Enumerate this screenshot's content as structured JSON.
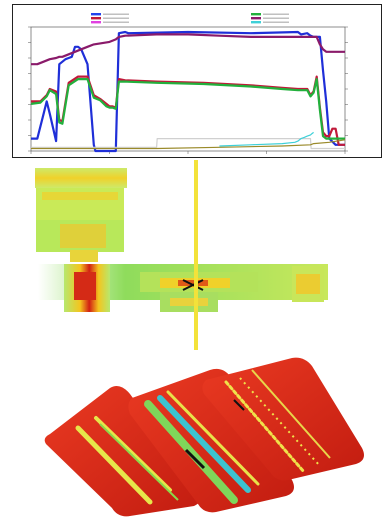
{
  "chart_data": {
    "type": "line",
    "title": "",
    "xlabel": "",
    "ylabel": "",
    "xlim": [
      0,
      100
    ],
    "ylim": [
      0,
      100
    ],
    "y2lim": [
      0,
      100
    ],
    "grid": false,
    "legend_placement": "top",
    "series": [
      {
        "color": "#1f2fd8",
        "axis": "left",
        "x": [
          0,
          2,
          4,
          5,
          6,
          8,
          9,
          10,
          11,
          12,
          13,
          14,
          15,
          16,
          18,
          20,
          20.5,
          22,
          24,
          25,
          26,
          26.5,
          27,
          28,
          30,
          31,
          50,
          70,
          85,
          86,
          88,
          89,
          90,
          92,
          93,
          94,
          95,
          97,
          98,
          100
        ],
        "y": [
          10,
          10,
          30,
          40,
          30,
          8,
          70,
          72,
          74,
          75,
          76,
          84,
          84,
          82,
          70,
          5,
          0,
          0,
          0,
          0,
          0,
          0,
          0,
          95,
          96,
          95,
          96,
          95,
          96,
          94,
          95,
          93,
          92,
          92,
          65,
          40,
          10,
          5,
          5,
          5
        ]
      },
      {
        "color": "#c01a3a",
        "axis": "left",
        "x": [
          0,
          3,
          5,
          6,
          8,
          9,
          10,
          12,
          15,
          18,
          20,
          22,
          24,
          25,
          26,
          27,
          28,
          30,
          40,
          55,
          70,
          80,
          85,
          88,
          89,
          90,
          91,
          92,
          93,
          94,
          95,
          96,
          97,
          98,
          100
        ],
        "y": [
          40,
          40,
          45,
          50,
          48,
          25,
          24,
          55,
          60,
          60,
          45,
          42,
          38,
          36,
          36,
          35,
          58,
          57,
          56,
          55,
          53,
          51,
          50,
          50,
          45,
          48,
          60,
          35,
          15,
          12,
          12,
          18,
          18,
          5,
          5
        ]
      },
      {
        "color": "#22b03c",
        "axis": "left",
        "x": [
          0,
          3,
          5,
          6,
          8,
          9,
          10,
          12,
          15,
          18,
          20,
          22,
          24,
          25,
          26,
          27,
          28,
          30,
          40,
          55,
          70,
          80,
          85,
          88,
          89,
          90,
          91,
          92,
          93,
          94,
          95,
          100
        ],
        "y": [
          38,
          39,
          44,
          49,
          46,
          23,
          22,
          53,
          58,
          58,
          43,
          41,
          36,
          35,
          35,
          34,
          56,
          56,
          55,
          54,
          52,
          50,
          49,
          49,
          44,
          47,
          58,
          33,
          12,
          10,
          10,
          10
        ]
      },
      {
        "color": "#8a1a6a",
        "axis": "right",
        "x": [
          0,
          2,
          4,
          6,
          8,
          9,
          10,
          12,
          14,
          16,
          18,
          20,
          25,
          27,
          28,
          30,
          40,
          50,
          60,
          70,
          80,
          85,
          88,
          90,
          91,
          92,
          93,
          94,
          95,
          96,
          100
        ],
        "y": [
          70,
          70,
          72,
          74,
          75,
          76,
          76,
          78,
          80,
          82,
          84,
          86,
          88,
          90,
          92,
          93,
          94,
          94,
          93,
          92,
          92,
          92,
          92,
          92,
          92,
          86,
          82,
          80,
          80,
          80,
          80
        ]
      },
      {
        "color": "#d0d0d0",
        "axis": "left",
        "x": [
          0,
          40,
          40.2,
          89,
          89.2,
          100
        ],
        "y": [
          3,
          3,
          10,
          10,
          2,
          2
        ]
      },
      {
        "color": "#3ed0d8",
        "axis": "left",
        "x": [
          60,
          70,
          80,
          84,
          85,
          85.5,
          86,
          87,
          88,
          89,
          89.5,
          90
        ],
        "y": [
          4,
          5,
          6,
          7,
          8,
          9,
          10,
          11,
          12,
          13,
          14,
          15
        ]
      },
      {
        "color": "#9a8a2a",
        "axis": "left",
        "x": [
          0,
          40,
          60,
          80,
          89,
          90,
          95,
          100
        ],
        "y": [
          2,
          2,
          3,
          4,
          5,
          6,
          7,
          9
        ]
      }
    ]
  },
  "legend_colors": [
    "#2244ee",
    "#c01a3a",
    "#e040e0",
    "#22b03c",
    "#8a1a6a",
    "#3ed0d8"
  ],
  "colors": {
    "scan_hot": "#d21f14",
    "scan_mid": "#f4c51e",
    "scan_cool": "#7fd65a",
    "scan_edge": "#b6e86e",
    "marker_line": "#f3e23a",
    "render_base": "#e12a1a",
    "render_track": "#d9e63a"
  }
}
